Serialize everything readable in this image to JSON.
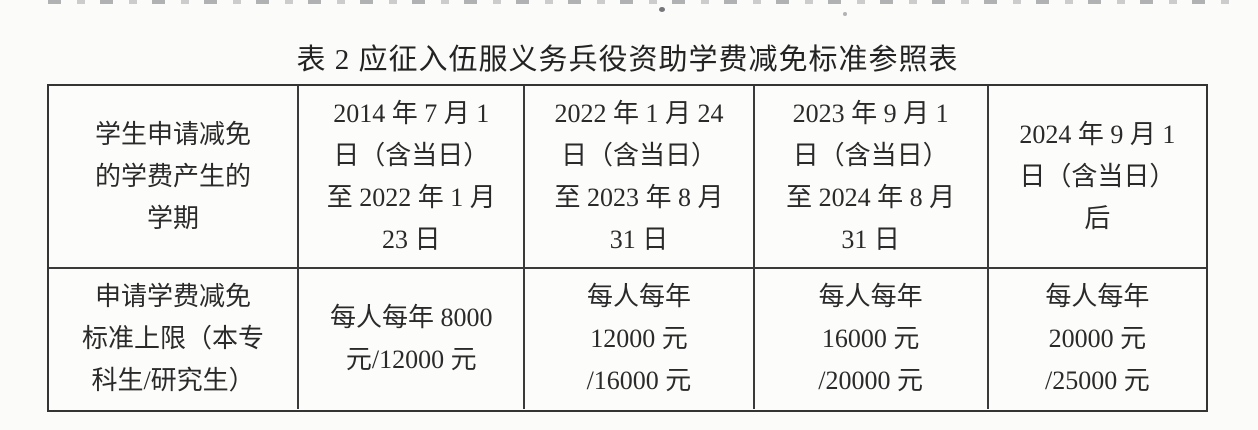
{
  "document": {
    "title": "表 2 应征入伍服义务兵役资助学费减免标准参照表",
    "table": {
      "header_row": [
        "学生申请减免\n的学费产生的\n学期",
        "2014 年 7 月 1\n日（含当日）\n至 2022 年 1 月\n23 日",
        "2022 年 1 月 24\n日（含当日）\n至 2023 年 8 月\n31 日",
        "2023 年 9 月 1\n日（含当日）\n至 2024 年 8 月\n31 日",
        "2024 年 9 月 1\n日（含当日）\n后"
      ],
      "standard_row": [
        "申请学费减免\n标准上限（本专\n科生/研究生）",
        "每人每年 8000\n元/12000 元",
        "每人每年\n12000 元\n/16000 元",
        "每人每年\n16000 元\n/20000 元",
        "每人每年\n20000 元\n/25000 元"
      ]
    }
  }
}
